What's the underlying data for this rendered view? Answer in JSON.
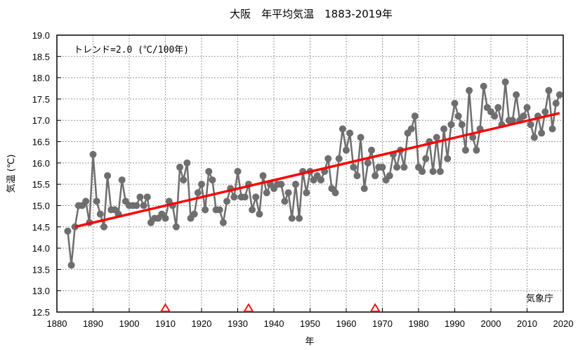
{
  "chart_data": {
    "type": "line",
    "title": "大阪　年平均気温　1883-2019年",
    "xlabel": "年",
    "ylabel": "気温 (℃)",
    "xlim": [
      1880,
      2020
    ],
    "ylim": [
      12.5,
      19.0
    ],
    "grid": true,
    "x_ticks": [
      "1880",
      "1890",
      "1900",
      "1910",
      "1920",
      "1930",
      "1940",
      "1950",
      "1960",
      "1970",
      "1980",
      "1990",
      "2000",
      "2010",
      "2020"
    ],
    "y_ticks": [
      "12.5",
      "13.0",
      "13.5",
      "14.0",
      "14.5",
      "15.0",
      "15.5",
      "16.0",
      "16.5",
      "17.0",
      "17.5",
      "18.0",
      "18.5",
      "19.0"
    ],
    "annotation": "トレンド=2.0 (℃/100年)",
    "source": "気象庁",
    "colors": {
      "series": "#6e6e6e",
      "trend": "#ff0000",
      "marker_triangle": "#ff0000"
    },
    "series": [
      {
        "name": "年平均気温",
        "x_start": 1883,
        "values": [
          14.4,
          13.6,
          14.5,
          15.0,
          15.0,
          15.1,
          14.6,
          16.2,
          15.1,
          14.8,
          14.5,
          15.7,
          14.9,
          14.9,
          14.8,
          15.6,
          15.1,
          15.0,
          15.0,
          15.0,
          15.2,
          15.0,
          15.2,
          14.6,
          14.7,
          14.7,
          14.8,
          14.7,
          15.1,
          15.0,
          14.5,
          15.9,
          15.6,
          16.0,
          14.7,
          14.8,
          15.3,
          15.5,
          14.9,
          15.8,
          15.6,
          14.9,
          14.9,
          14.6,
          15.1,
          15.4,
          15.2,
          15.8,
          15.2,
          15.2,
          15.5,
          14.9,
          15.2,
          14.8,
          15.7,
          15.3,
          15.5,
          15.4,
          15.5,
          15.5,
          15.1,
          15.3,
          14.7,
          15.5,
          14.7,
          15.8,
          15.3,
          15.8,
          15.6,
          15.7,
          15.6,
          15.8,
          16.1,
          15.4,
          15.3,
          16.1,
          16.8,
          16.3,
          16.7,
          15.9,
          15.7,
          16.6,
          15.4,
          16.0,
          16.3,
          15.7,
          15.9,
          15.9,
          15.6,
          15.7,
          16.2,
          15.9,
          16.3,
          15.9,
          16.7,
          16.8,
          17.1,
          15.9,
          15.8,
          16.1,
          16.5,
          15.8,
          16.6,
          15.8,
          16.8,
          16.1,
          16.9,
          17.4,
          17.1,
          16.9,
          16.3,
          17.7,
          16.6,
          16.3,
          16.8,
          17.8,
          17.3,
          17.2,
          17.1,
          17.3,
          16.9,
          17.9,
          17.0,
          17.0,
          17.6,
          17.0,
          17.1,
          17.3,
          16.9,
          16.6,
          17.1,
          16.7,
          17.2,
          17.7,
          16.8,
          17.4,
          17.6
        ]
      },
      {
        "name": "トレンド",
        "x": [
          1885,
          2019
        ],
        "values": [
          14.5,
          17.17
        ]
      }
    ],
    "station_change_markers": [
      1910,
      1933,
      1968
    ]
  }
}
